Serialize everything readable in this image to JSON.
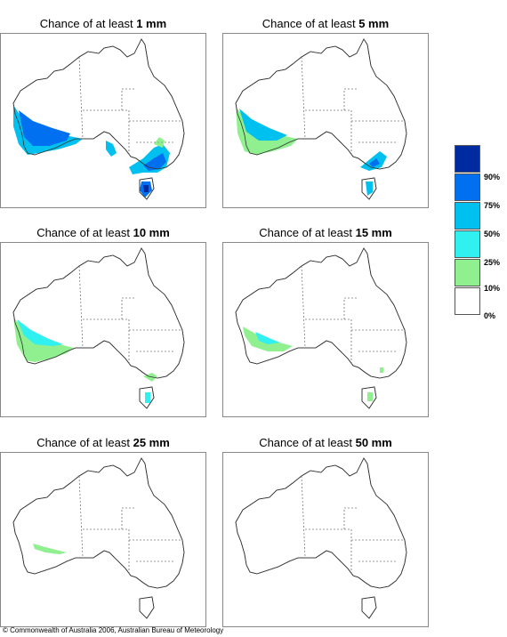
{
  "title_prefix": "Chance of at least",
  "panels": [
    {
      "amount": "1 mm"
    },
    {
      "amount": "5 mm"
    },
    {
      "amount": "10 mm"
    },
    {
      "amount": "15 mm"
    },
    {
      "amount": "25 mm"
    },
    {
      "amount": "50 mm"
    }
  ],
  "legend": {
    "classes": [
      {
        "color": "#ffffff"
      },
      {
        "color": "#90f090"
      },
      {
        "color": "#30f0f0"
      },
      {
        "color": "#00c0f0"
      },
      {
        "color": "#0070f0"
      },
      {
        "color": "#002aa0"
      }
    ],
    "labels": [
      "0%",
      "10%",
      "25%",
      "50%",
      "75%",
      "90%"
    ]
  },
  "copyright": "© Commonwealth of Australia 2006, Australian Bureau of Meteorology"
}
